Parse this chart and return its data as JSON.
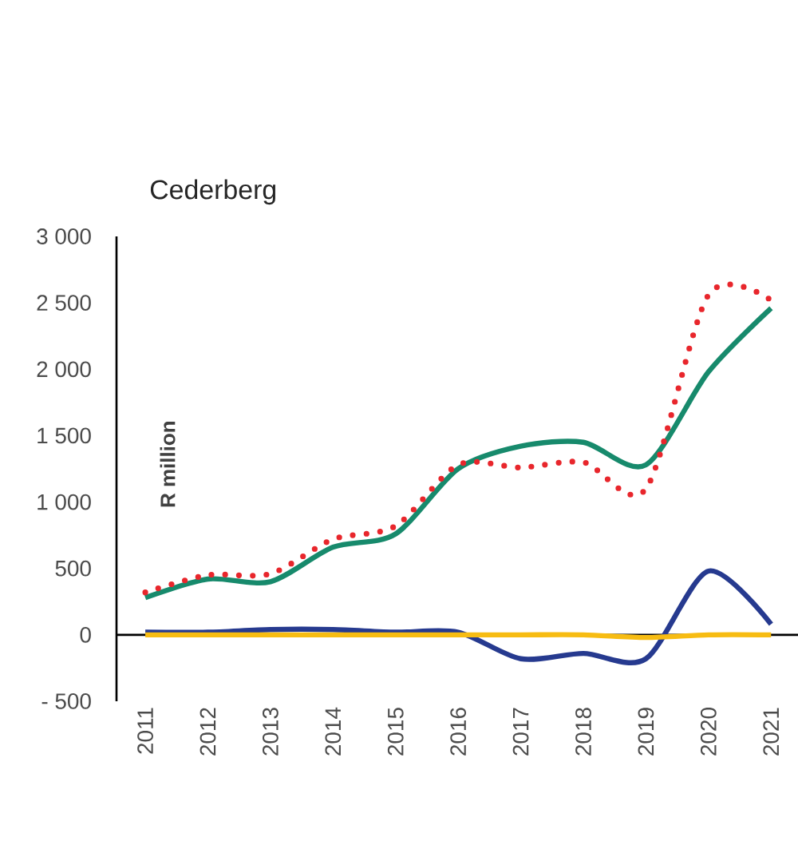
{
  "chart_data": {
    "type": "line",
    "title": "Cederberg",
    "ylabel": "R million",
    "categories": [
      "2011",
      "2012",
      "2013",
      "2014",
      "2015",
      "2016",
      "2017",
      "2018",
      "2019",
      "2020",
      "2021"
    ],
    "series": [
      {
        "color": "#178a6c",
        "line_style": "solid",
        "values": [
          280,
          420,
          400,
          660,
          760,
          1250,
          1420,
          1450,
          1280,
          1980,
          2460
        ]
      },
      {
        "color": "#e8262c",
        "line_style": "dotted",
        "values": [
          320,
          450,
          460,
          720,
          820,
          1280,
          1260,
          1300,
          1100,
          2560,
          2520
        ]
      },
      {
        "color": "#263a8f",
        "line_style": "solid",
        "values": [
          20,
          20,
          40,
          40,
          20,
          20,
          -180,
          -140,
          -180,
          480,
          80
        ]
      },
      {
        "color": "#f7bc12",
        "line_style": "solid",
        "values": [
          0,
          0,
          0,
          0,
          0,
          0,
          0,
          0,
          -20,
          0,
          0
        ]
      }
    ],
    "ylim": [
      -500,
      3000
    ],
    "yticks": [
      {
        "value": -500,
        "label": "- 500"
      },
      0,
      500,
      {
        "value": 1000,
        "label": "1 000"
      },
      {
        "value": 1500,
        "label": "1 500"
      },
      {
        "value": 2000,
        "label": "2 000"
      },
      {
        "value": 2500,
        "label": "2 500"
      },
      {
        "value": 3000,
        "label": "3 000"
      }
    ],
    "marker": "none"
  }
}
